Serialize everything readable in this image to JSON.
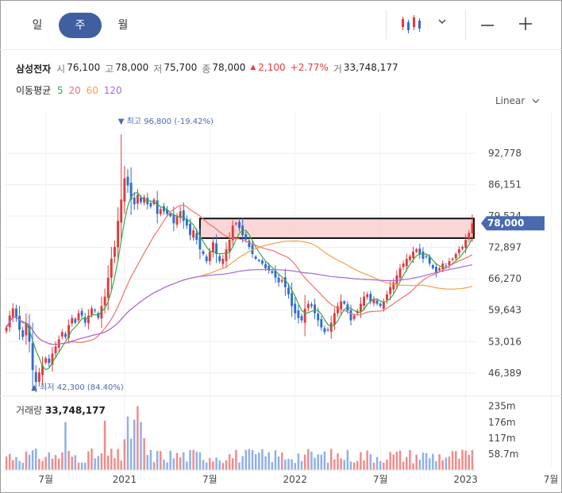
{
  "tabs": [
    {
      "label": "일",
      "active": false
    },
    {
      "label": "주",
      "active": true
    },
    {
      "label": "월",
      "active": false
    }
  ],
  "toolbar": {
    "chart_type_icon": "candlestick-icon",
    "dropdown_icon": "chevron-down-icon",
    "zoom_out_icon": "minus-icon",
    "zoom_in_icon": "plus-icon"
  },
  "quote": {
    "name": "삼성전자",
    "open_label": "시",
    "open": "76,100",
    "high_label": "고",
    "high": "78,000",
    "low_label": "저",
    "low": "75,700",
    "close_label": "종",
    "close": "78,000",
    "change": "2,100",
    "change_pct": "+2.77%",
    "volume_label": "거",
    "volume": "33,748,177"
  },
  "ma_legend": {
    "label": "이동평균",
    "periods": [
      {
        "label": "5",
        "color": "#3aa845"
      },
      {
        "label": "20",
        "color": "#f07070"
      },
      {
        "label": "60",
        "color": "#f2a14a"
      },
      {
        "label": "120",
        "color": "#a56ad8"
      }
    ]
  },
  "scale": {
    "label": "Linear"
  },
  "colors": {
    "up": "#e23a3a",
    "down": "#2f6dd0",
    "accent": "#4a6ab0",
    "box_fill": "#f9c8c8"
  },
  "chart_data": [
    {
      "type": "candlestick",
      "title": "",
      "price_ticks": [
        "92,778",
        "86,151",
        "79,524",
        "72,897",
        "66,270",
        "59,643",
        "53,016",
        "46,389"
      ],
      "ylim": [
        43000,
        100000
      ],
      "x_ticks": [
        "7월",
        "2021",
        "7월",
        "2022",
        "7월",
        "2023",
        "7월"
      ],
      "x_tick_weeks": [
        12,
        36,
        62,
        88,
        114,
        140,
        166
      ],
      "current_price": "78,000",
      "max_annotation": "최고 96,800 (-19.42%)",
      "min_annotation": "최저 42,300 (84.40%)",
      "highlight_range": [
        75700,
        78000
      ],
      "weekly_close": [
        56000,
        58500,
        60000,
        58000,
        55500,
        54000,
        57000,
        53000,
        47000,
        44500,
        46500,
        48000,
        49500,
        48500,
        50500,
        52000,
        53500,
        55000,
        54000,
        56500,
        58000,
        57000,
        59000,
        58500,
        57000,
        58500,
        60000,
        59500,
        58000,
        60500,
        62500,
        66500,
        70500,
        73000,
        78500,
        83000,
        87500,
        86000,
        83000,
        82000,
        84000,
        82500,
        83500,
        82000,
        81500,
        83000,
        80000,
        81000,
        80500,
        80000,
        79500,
        78000,
        79500,
        80500,
        78500,
        77500,
        75500,
        76500,
        74500,
        72500,
        71500,
        70000,
        72000,
        74000,
        71500,
        70000,
        70500,
        72500,
        74500,
        77500,
        78000,
        77000,
        75500,
        74500,
        73000,
        71500,
        70500,
        70000,
        69500,
        68500,
        68000,
        67500,
        66500,
        65500,
        66000,
        64500,
        63000,
        60500,
        59000,
        58000,
        57500,
        60000,
        61000,
        60500,
        59000,
        57500,
        56000,
        55000,
        55500,
        57000,
        59000,
        60500,
        61500,
        61000,
        59500,
        57500,
        58500,
        59500,
        61000,
        62500,
        63000,
        61500,
        62000,
        61000,
        60500,
        61500,
        63000,
        64500,
        65500,
        67000,
        68500,
        69500,
        70500,
        71000,
        72000,
        72500,
        71500,
        70500,
        71000,
        69500,
        68500,
        67500,
        68500,
        69500,
        69000,
        70000,
        70500,
        71500,
        72500,
        73000,
        74500,
        76000,
        78000
      ],
      "volume_ticks": [
        "235m",
        "176m",
        "117m",
        "58.7m"
      ],
      "volume_label": "거래량",
      "volume": "33,748,177"
    }
  ]
}
